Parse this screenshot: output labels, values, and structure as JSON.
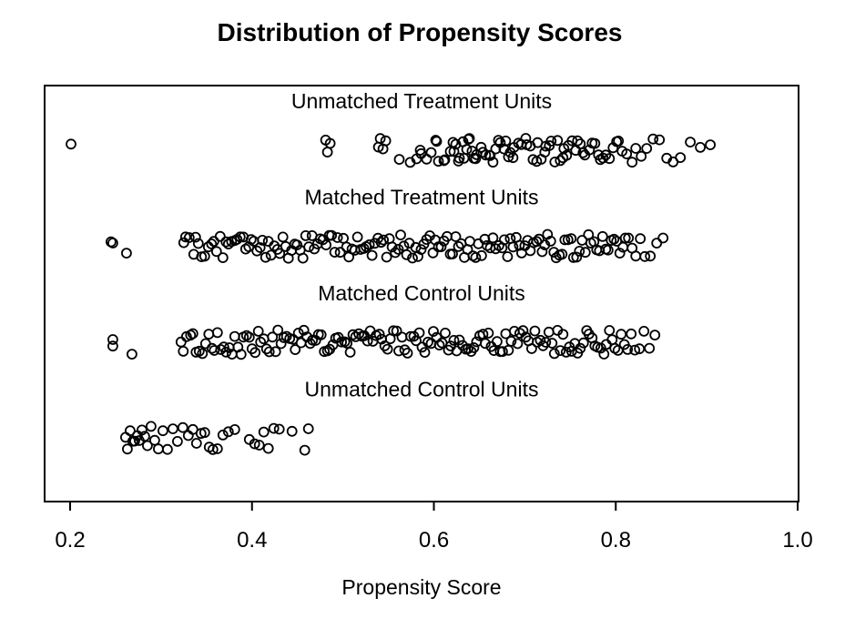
{
  "title": "Distribution of Propensity Scores",
  "chart_data": {
    "type": "scatter",
    "subtype": "jittered-strip-plot",
    "title": "Distribution of Propensity Scores",
    "xlabel": "Propensity Score",
    "xlim": [
      0.2,
      1.0
    ],
    "x_ticks": [
      0.2,
      0.4,
      0.6,
      0.8,
      1.0
    ],
    "x_tick_labels": [
      "0.2",
      "0.4",
      "0.6",
      "0.8",
      "1.0"
    ],
    "grid": "off",
    "legend": "none",
    "marker": "open-circle",
    "marker_color": "#000000",
    "groups": [
      {
        "label": "Unmatched Treatment Units",
        "scores": [
          0.201,
          0.481,
          0.483,
          0.486,
          0.539,
          0.541,
          0.544,
          0.547,
          0.562,
          0.574,
          0.581,
          0.585,
          0.586,
          0.592,
          0.597,
          0.602,
          0.603,
          0.605,
          0.611,
          0.612,
          0.618,
          0.621,
          0.622,
          0.624,
          0.627,
          0.628,
          0.632,
          0.633,
          0.636,
          0.638,
          0.639,
          0.642,
          0.644,
          0.646,
          0.647,
          0.652,
          0.654,
          0.657,
          0.661,
          0.662,
          0.665,
          0.668,
          0.671,
          0.673,
          0.677,
          0.679,
          0.682,
          0.684,
          0.687,
          0.688,
          0.693,
          0.696,
          0.701,
          0.702,
          0.706,
          0.709,
          0.713,
          0.714,
          0.718,
          0.722,
          0.723,
          0.727,
          0.729,
          0.733,
          0.736,
          0.739,
          0.742,
          0.743,
          0.746,
          0.748,
          0.752,
          0.756,
          0.758,
          0.761,
          0.764,
          0.766,
          0.771,
          0.774,
          0.777,
          0.781,
          0.783,
          0.786,
          0.789,
          0.793,
          0.797,
          0.801,
          0.803,
          0.807,
          0.812,
          0.818,
          0.822,
          0.828,
          0.834,
          0.841,
          0.848,
          0.856,
          0.863,
          0.871,
          0.882,
          0.893,
          0.904
        ]
      },
      {
        "label": "Matched Treatment Units",
        "scores": [
          0.245,
          0.247,
          0.262,
          0.325,
          0.327,
          0.331,
          0.336,
          0.338,
          0.341,
          0.3445,
          0.348,
          0.352,
          0.3555,
          0.358,
          0.361,
          0.365,
          0.368,
          0.3715,
          0.374,
          0.3775,
          0.381,
          0.3835,
          0.387,
          0.3905,
          0.393,
          0.3965,
          0.399,
          0.402,
          0.4055,
          0.409,
          0.4115,
          0.415,
          0.418,
          0.421,
          0.4245,
          0.428,
          0.4305,
          0.434,
          0.437,
          0.44,
          0.4435,
          0.447,
          0.4495,
          0.453,
          0.456,
          0.459,
          0.4625,
          0.466,
          0.4685,
          0.472,
          0.475,
          0.478,
          0.4815,
          0.485,
          0.4875,
          0.491,
          0.494,
          0.497,
          0.5005,
          0.504,
          0.5065,
          0.51,
          0.513,
          0.516,
          0.5195,
          0.523,
          0.5255,
          0.529,
          0.532,
          0.535,
          0.5385,
          0.542,
          0.5445,
          0.548,
          0.551,
          0.554,
          0.5575,
          0.561,
          0.5635,
          0.567,
          0.57,
          0.573,
          0.5765,
          0.58,
          0.5825,
          0.586,
          0.589,
          0.592,
          0.5955,
          0.599,
          0.6015,
          0.605,
          0.608,
          0.611,
          0.6145,
          0.618,
          0.6205,
          0.624,
          0.627,
          0.63,
          0.6335,
          0.637,
          0.6395,
          0.643,
          0.646,
          0.649,
          0.6525,
          0.656,
          0.6585,
          0.662,
          0.665,
          0.668,
          0.6715,
          0.675,
          0.6775,
          0.681,
          0.684,
          0.687,
          0.6905,
          0.694,
          0.6965,
          0.7,
          0.703,
          0.706,
          0.7095,
          0.713,
          0.7155,
          0.719,
          0.722,
          0.725,
          0.7285,
          0.732,
          0.7345,
          0.738,
          0.741,
          0.744,
          0.7475,
          0.751,
          0.7535,
          0.757,
          0.76,
          0.763,
          0.7665,
          0.77,
          0.7725,
          0.776,
          0.779,
          0.782,
          0.7855,
          0.789,
          0.7915,
          0.795,
          0.798,
          0.801,
          0.8045,
          0.808,
          0.8105,
          0.814,
          0.818,
          0.822,
          0.827,
          0.832,
          0.838,
          0.845,
          0.852
        ]
      },
      {
        "label": "Matched Control Units",
        "scores": [
          0.247,
          0.247,
          0.268,
          0.322,
          0.3245,
          0.328,
          0.3325,
          0.335,
          0.3385,
          0.342,
          0.3455,
          0.349,
          0.3525,
          0.356,
          0.3585,
          0.362,
          0.3655,
          0.369,
          0.3715,
          0.375,
          0.378,
          0.381,
          0.3845,
          0.388,
          0.3905,
          0.394,
          0.397,
          0.4,
          0.4035,
          0.407,
          0.4095,
          0.413,
          0.416,
          0.419,
          0.4225,
          0.426,
          0.4285,
          0.432,
          0.435,
          0.438,
          0.4415,
          0.445,
          0.4475,
          0.451,
          0.454,
          0.457,
          0.4605,
          0.464,
          0.4665,
          0.47,
          0.473,
          0.476,
          0.4795,
          0.483,
          0.4855,
          0.489,
          0.492,
          0.495,
          0.4985,
          0.502,
          0.5045,
          0.508,
          0.511,
          0.514,
          0.5175,
          0.521,
          0.5235,
          0.527,
          0.53,
          0.533,
          0.5365,
          0.54,
          0.5425,
          0.546,
          0.549,
          0.552,
          0.5555,
          0.559,
          0.5615,
          0.565,
          0.568,
          0.571,
          0.5745,
          0.578,
          0.5805,
          0.584,
          0.587,
          0.59,
          0.5935,
          0.597,
          0.5995,
          0.603,
          0.606,
          0.609,
          0.6125,
          0.616,
          0.6185,
          0.622,
          0.625,
          0.628,
          0.6315,
          0.635,
          0.6375,
          0.641,
          0.644,
          0.647,
          0.6505,
          0.654,
          0.6565,
          0.66,
          0.663,
          0.666,
          0.6695,
          0.673,
          0.6755,
          0.679,
          0.682,
          0.685,
          0.6885,
          0.692,
          0.6945,
          0.698,
          0.701,
          0.704,
          0.7075,
          0.711,
          0.7135,
          0.717,
          0.72,
          0.723,
          0.7265,
          0.73,
          0.7325,
          0.736,
          0.739,
          0.742,
          0.7455,
          0.749,
          0.7515,
          0.755,
          0.758,
          0.761,
          0.7645,
          0.768,
          0.7705,
          0.774,
          0.777,
          0.78,
          0.7835,
          0.787,
          0.7895,
          0.793,
          0.796,
          0.799,
          0.8025,
          0.806,
          0.8095,
          0.813,
          0.817,
          0.821,
          0.826,
          0.831,
          0.837,
          0.843
        ]
      },
      {
        "label": "Unmatched Control Units",
        "scores": [
          0.261,
          0.263,
          0.266,
          0.269,
          0.271,
          0.274,
          0.276,
          0.279,
          0.282,
          0.285,
          0.289,
          0.293,
          0.297,
          0.302,
          0.307,
          0.313,
          0.318,
          0.324,
          0.33,
          0.335,
          0.339,
          0.344,
          0.348,
          0.353,
          0.357,
          0.362,
          0.368,
          0.374,
          0.381,
          0.397,
          0.403,
          0.408,
          0.413,
          0.418,
          0.424,
          0.43,
          0.444,
          0.458,
          0.462
        ]
      }
    ]
  }
}
